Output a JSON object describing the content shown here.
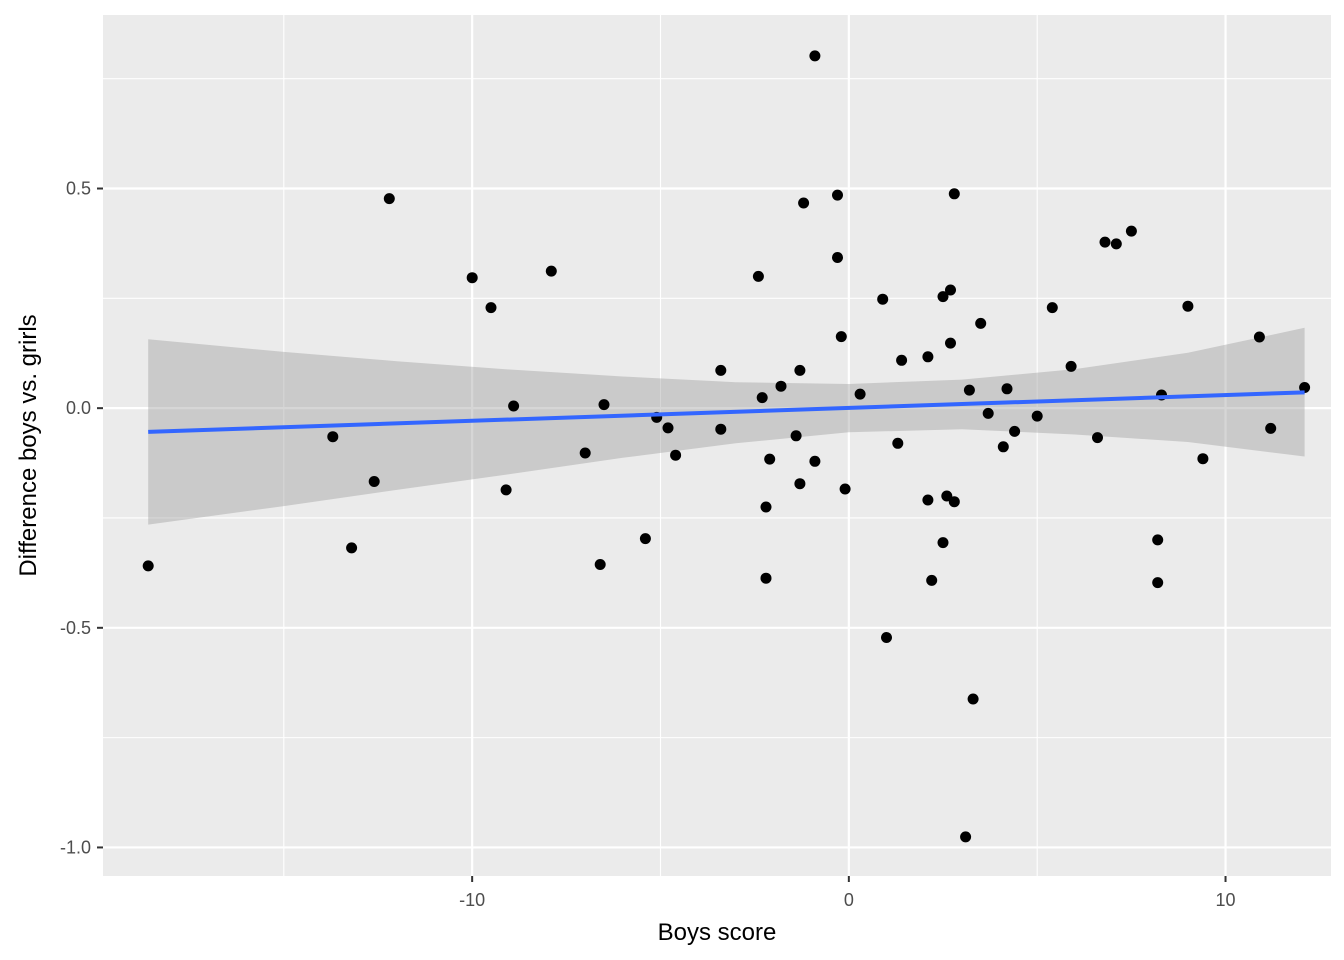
{
  "chart_data": {
    "type": "scatter",
    "title": "",
    "xlabel": "Boys score",
    "ylabel": "Difference boys vs. grirls",
    "xlim": [
      -19.8,
      12.8
    ],
    "ylim": [
      -1.065,
      0.895
    ],
    "x_ticks": [
      -10,
      0,
      10
    ],
    "x_tick_labels": [
      "-10",
      "0",
      "10"
    ],
    "y_ticks": [
      0.5,
      0.0,
      -0.5,
      -1.0
    ],
    "y_tick_labels": [
      "0.5",
      "0.0",
      "-0.5",
      "-1.0"
    ],
    "grid": true,
    "points": [
      {
        "x": -18.6,
        "y": -0.359
      },
      {
        "x": -13.7,
        "y": -0.065
      },
      {
        "x": -13.2,
        "y": -0.318
      },
      {
        "x": -12.6,
        "y": -0.167
      },
      {
        "x": -12.2,
        "y": 0.477
      },
      {
        "x": -10.0,
        "y": 0.297
      },
      {
        "x": -9.5,
        "y": 0.229
      },
      {
        "x": -9.1,
        "y": -0.186
      },
      {
        "x": -8.9,
        "y": 0.005
      },
      {
        "x": -7.9,
        "y": 0.312
      },
      {
        "x": -7.0,
        "y": -0.102
      },
      {
        "x": -6.6,
        "y": -0.356
      },
      {
        "x": -6.5,
        "y": 0.008
      },
      {
        "x": -5.4,
        "y": -0.297
      },
      {
        "x": -5.1,
        "y": -0.021
      },
      {
        "x": -4.8,
        "y": -0.045
      },
      {
        "x": -4.6,
        "y": -0.107
      },
      {
        "x": -3.4,
        "y": 0.086
      },
      {
        "x": -3.4,
        "y": -0.048
      },
      {
        "x": -2.4,
        "y": 0.3
      },
      {
        "x": -2.3,
        "y": 0.024
      },
      {
        "x": -2.2,
        "y": -0.225
      },
      {
        "x": -2.2,
        "y": -0.387
      },
      {
        "x": -2.1,
        "y": -0.116
      },
      {
        "x": -1.8,
        "y": 0.05
      },
      {
        "x": -1.4,
        "y": -0.063
      },
      {
        "x": -1.3,
        "y": 0.086
      },
      {
        "x": -1.3,
        "y": -0.172
      },
      {
        "x": -1.2,
        "y": 0.467
      },
      {
        "x": -0.9,
        "y": -0.121
      },
      {
        "x": -0.9,
        "y": 0.802
      },
      {
        "x": -0.3,
        "y": 0.343
      },
      {
        "x": -0.3,
        "y": 0.485
      },
      {
        "x": -0.2,
        "y": 0.163
      },
      {
        "x": -0.1,
        "y": -0.184
      },
      {
        "x": 0.3,
        "y": 0.032
      },
      {
        "x": 0.9,
        "y": 0.248
      },
      {
        "x": 1.0,
        "y": -0.522
      },
      {
        "x": 1.3,
        "y": -0.08
      },
      {
        "x": 1.4,
        "y": 0.109
      },
      {
        "x": 2.1,
        "y": -0.209
      },
      {
        "x": 2.1,
        "y": 0.117
      },
      {
        "x": 2.2,
        "y": -0.392
      },
      {
        "x": 2.5,
        "y": 0.254
      },
      {
        "x": 2.5,
        "y": -0.306
      },
      {
        "x": 2.6,
        "y": -0.2
      },
      {
        "x": 2.7,
        "y": 0.148
      },
      {
        "x": 2.7,
        "y": 0.269
      },
      {
        "x": 2.8,
        "y": 0.488
      },
      {
        "x": 2.8,
        "y": -0.213
      },
      {
        "x": 3.1,
        "y": -0.976
      },
      {
        "x": 3.2,
        "y": 0.041
      },
      {
        "x": 3.3,
        "y": -0.662
      },
      {
        "x": 3.5,
        "y": 0.193
      },
      {
        "x": 3.7,
        "y": -0.012
      },
      {
        "x": 4.1,
        "y": -0.088
      },
      {
        "x": 4.2,
        "y": 0.044
      },
      {
        "x": 4.4,
        "y": -0.053
      },
      {
        "x": 5.0,
        "y": -0.018
      },
      {
        "x": 5.4,
        "y": 0.229
      },
      {
        "x": 5.9,
        "y": 0.095
      },
      {
        "x": 6.6,
        "y": -0.067
      },
      {
        "x": 6.8,
        "y": 0.378
      },
      {
        "x": 7.1,
        "y": 0.374
      },
      {
        "x": 7.5,
        "y": 0.403
      },
      {
        "x": 8.2,
        "y": -0.3
      },
      {
        "x": 8.2,
        "y": -0.397
      },
      {
        "x": 8.3,
        "y": 0.03
      },
      {
        "x": 9.0,
        "y": 0.232
      },
      {
        "x": 9.4,
        "y": -0.115
      },
      {
        "x": 10.9,
        "y": 0.162
      },
      {
        "x": 11.2,
        "y": -0.046
      },
      {
        "x": 12.1,
        "y": 0.047
      }
    ],
    "trend_line": {
      "x": [
        -18.6,
        12.1
      ],
      "y": [
        -0.054,
        0.036
      ],
      "color": "#3366FF"
    },
    "confidence_band": {
      "x": [
        -18.6,
        -15,
        -12,
        -9,
        -6,
        -3,
        0,
        3,
        6,
        9,
        12.1
      ],
      "upper": [
        0.157,
        0.128,
        0.107,
        0.088,
        0.072,
        0.059,
        0.055,
        0.065,
        0.089,
        0.126,
        0.183
      ],
      "lower": [
        -0.265,
        -0.223,
        -0.186,
        -0.15,
        -0.113,
        -0.08,
        -0.055,
        -0.048,
        -0.06,
        -0.077,
        -0.11
      ],
      "color": "#999999"
    },
    "colors": {
      "panel_background": "#EBEBEB",
      "grid": "#FFFFFF",
      "point": "#000000",
      "axis_text": "#4D4D4D"
    }
  }
}
